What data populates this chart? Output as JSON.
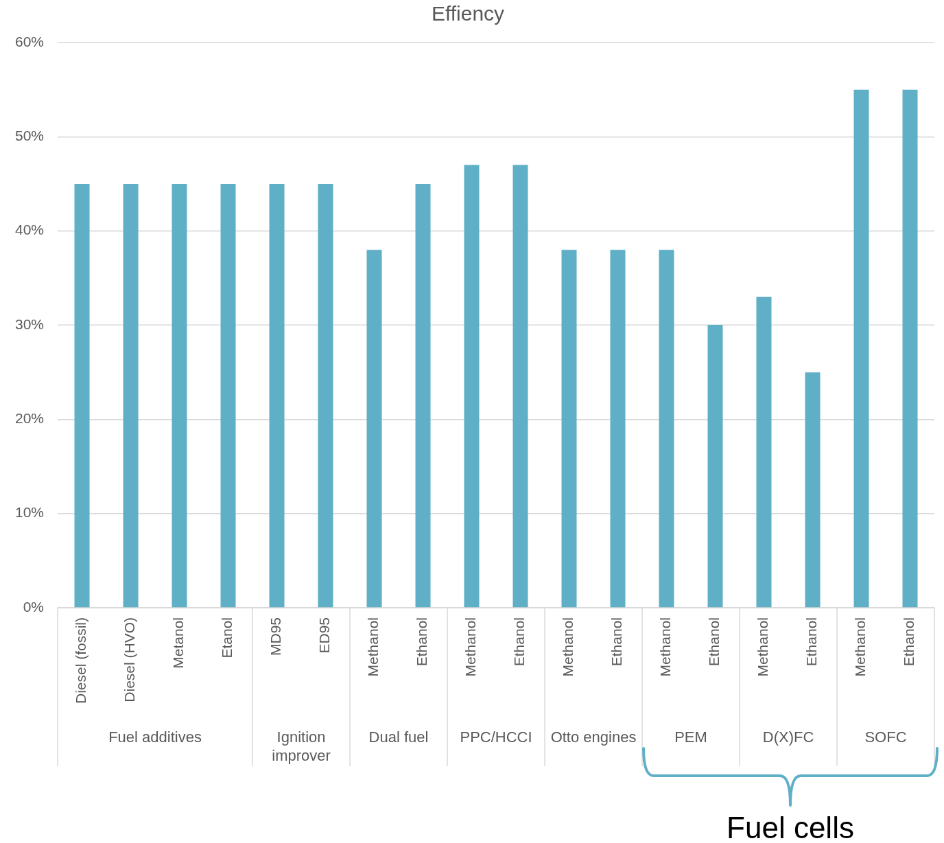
{
  "chart_data": {
    "type": "bar",
    "title": "Effiency",
    "categories": [
      "Diesel (fossil)",
      "Diesel (HVO)",
      "Metanol",
      "Etanol",
      "MD95",
      "ED95",
      "Methanol",
      "Ethanol",
      "Methanol",
      "Ethanol",
      "Methanol",
      "Ethanol",
      "Methanol",
      "Ethanol",
      "Methanol",
      "Ethanol",
      "Methanol",
      "Ethanol"
    ],
    "values": [
      45,
      45,
      45,
      45,
      45,
      45,
      38,
      45,
      47,
      47,
      38,
      38,
      38,
      30,
      33,
      25,
      55,
      55
    ],
    "color": "#5fafc6",
    "ylim": [
      0,
      60
    ],
    "yticks": [
      {
        "value": 0,
        "label": "0%"
      },
      {
        "value": 10,
        "label": "10%"
      },
      {
        "value": 20,
        "label": "20%"
      },
      {
        "value": 30,
        "label": "30%"
      },
      {
        "value": 40,
        "label": "40%"
      },
      {
        "value": 50,
        "label": "50%"
      },
      {
        "value": 60,
        "label": "60%"
      }
    ],
    "grid": "y",
    "annotations": [
      "Fuel additives",
      "Ignition improver",
      "Dual fuel",
      "PPC/HCCI",
      "Otto engines",
      "PEM",
      "D(X)FC",
      "SOFC",
      "Fuel cells"
    ]
  }
}
